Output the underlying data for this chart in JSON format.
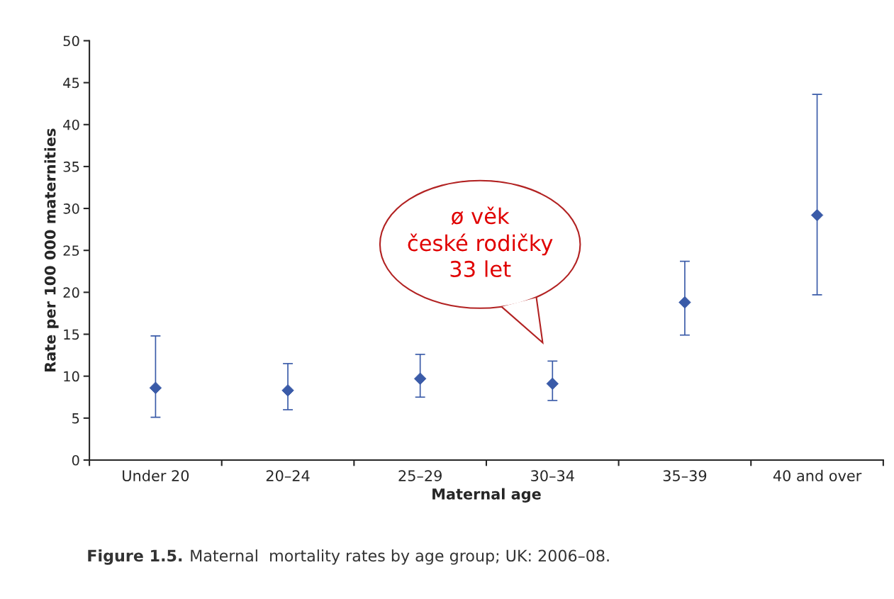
{
  "chart_data": {
    "type": "scatter",
    "xlabel": "Maternal age",
    "ylabel": "Rate per 100 000 maternities",
    "categories": [
      "Under 20",
      "20–24",
      "25–29",
      "30–34",
      "35–39",
      "40 and over"
    ],
    "series": [
      {
        "color": "#3a5ba8",
        "values": [
          8.6,
          8.3,
          9.7,
          9.1,
          18.8,
          29.2
        ],
        "errors": [
          [
            5.1,
            14.8
          ],
          [
            6.0,
            11.5
          ],
          [
            7.5,
            12.6
          ],
          [
            7.1,
            11.8
          ],
          [
            14.9,
            23.7
          ],
          [
            19.7,
            43.6
          ]
        ]
      }
    ],
    "marker": "diamond",
    "ylim": [
      0,
      50
    ],
    "yticks": [
      0,
      5,
      10,
      15,
      20,
      25,
      30,
      35,
      40,
      45,
      50
    ],
    "grid": false,
    "legend": false,
    "annotations": [
      "ø věk\nčeské rodičky\n33 let",
      "Figure 1.5.",
      "Maternal  mortality rates by age group; UK: 2006–08."
    ]
  }
}
